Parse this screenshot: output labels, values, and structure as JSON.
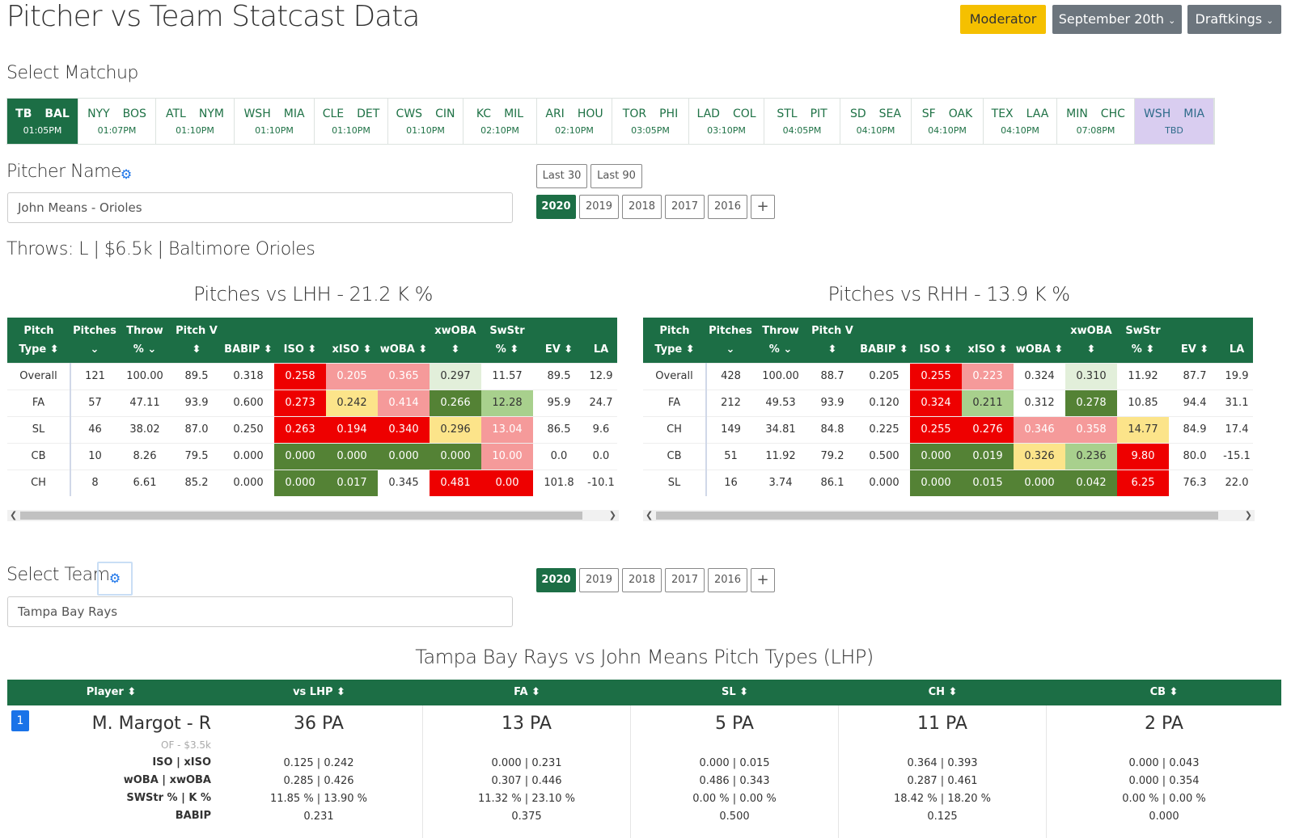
{
  "header": {
    "title": "Pitcher vs Team Statcast Data",
    "moderator": "Moderator",
    "date": "September 20th",
    "site": "Draftkings",
    "caret": "⌄"
  },
  "matchup_section": {
    "title": "Select Matchup"
  },
  "matchups": [
    {
      "a": "TB",
      "b": "BAL",
      "time": "01:05PM"
    },
    {
      "a": "NYY",
      "b": "BOS",
      "time": "01:07PM"
    },
    {
      "a": "ATL",
      "b": "NYM",
      "time": "01:10PM"
    },
    {
      "a": "WSH",
      "b": "MIA",
      "time": "01:10PM"
    },
    {
      "a": "CLE",
      "b": "DET",
      "time": "01:10PM"
    },
    {
      "a": "CWS",
      "b": "CIN",
      "time": "01:10PM"
    },
    {
      "a": "KC",
      "b": "MIL",
      "time": "02:10PM"
    },
    {
      "a": "ARI",
      "b": "HOU",
      "time": "02:10PM"
    },
    {
      "a": "TOR",
      "b": "PHI",
      "time": "03:05PM"
    },
    {
      "a": "LAD",
      "b": "COL",
      "time": "03:10PM"
    },
    {
      "a": "STL",
      "b": "PIT",
      "time": "04:05PM"
    },
    {
      "a": "SD",
      "b": "SEA",
      "time": "04:10PM"
    },
    {
      "a": "SF",
      "b": "OAK",
      "time": "04:10PM"
    },
    {
      "a": "TEX",
      "b": "LAA",
      "time": "04:10PM"
    },
    {
      "a": "MIN",
      "b": "CHC",
      "time": "07:08PM"
    },
    {
      "a": "WSH",
      "b": "MIA",
      "time": "TBD"
    }
  ],
  "pitcher": {
    "label": "Pitcher Name",
    "value": "John Means - Orioles",
    "info": "Throws: L | $6.5k | Baltimore Orioles",
    "range_buttons": [
      "Last 30",
      "Last 90"
    ],
    "years": [
      "2020",
      "2019",
      "2018",
      "2017",
      "2016"
    ],
    "plus": "+"
  },
  "lhh": {
    "title": "Pitches vs LHH - 21.2 K %",
    "rows": [
      [
        "Overall",
        "121",
        "100.00",
        "89.5",
        "0.318",
        "0.258",
        "0.205",
        "0.365",
        "0.297",
        "11.57",
        "89.5",
        "12.9"
      ],
      [
        "FA",
        "57",
        "47.11",
        "93.9",
        "0.600",
        "0.273",
        "0.242",
        "0.414",
        "0.266",
        "12.28",
        "95.9",
        "24.7"
      ],
      [
        "SL",
        "46",
        "38.02",
        "87.0",
        "0.250",
        "0.263",
        "0.194",
        "0.340",
        "0.296",
        "13.04",
        "86.5",
        "9.6"
      ],
      [
        "CB",
        "10",
        "8.26",
        "79.5",
        "0.000",
        "0.000",
        "0.000",
        "0.000",
        "0.000",
        "10.00",
        "0.0",
        "0.0"
      ],
      [
        "CH",
        "8",
        "6.61",
        "85.2",
        "0.000",
        "0.000",
        "0.017",
        "0.345",
        "0.481",
        "0.00",
        "101.8",
        "-10.1"
      ]
    ]
  },
  "rhh": {
    "title": "Pitches vs RHH - 13.9 K %",
    "rows": [
      [
        "Overall",
        "428",
        "100.00",
        "88.7",
        "0.205",
        "0.255",
        "0.223",
        "0.324",
        "0.310",
        "11.92",
        "87.7",
        "19.9"
      ],
      [
        "FA",
        "212",
        "49.53",
        "93.9",
        "0.120",
        "0.324",
        "0.211",
        "0.312",
        "0.278",
        "10.85",
        "94.4",
        "31.1"
      ],
      [
        "CH",
        "149",
        "34.81",
        "84.8",
        "0.225",
        "0.255",
        "0.276",
        "0.346",
        "0.358",
        "14.77",
        "84.9",
        "17.4"
      ],
      [
        "CB",
        "51",
        "11.92",
        "79.2",
        "0.500",
        "0.000",
        "0.019",
        "0.326",
        "0.236",
        "9.80",
        "80.0",
        "-15.1"
      ],
      [
        "SL",
        "16",
        "3.74",
        "86.1",
        "0.000",
        "0.000",
        "0.015",
        "0.000",
        "0.042",
        "6.25",
        "76.3",
        "22.0"
      ]
    ]
  },
  "pitch_table_headers": [
    [
      "Pitch",
      "Type ⬍"
    ],
    [
      "Pitches",
      "⌄"
    ],
    [
      "Throw",
      "% ⌄"
    ],
    [
      "Pitch V",
      "⬍"
    ],
    [
      "",
      "BABIP ⬍"
    ],
    [
      "",
      "ISO ⬍"
    ],
    [
      "",
      "xISO ⬍"
    ],
    [
      "",
      "wOBA ⬍"
    ],
    [
      "xwOBA",
      "⬍"
    ],
    [
      "SwStr",
      "% ⬍"
    ],
    [
      "",
      "EV ⬍"
    ],
    [
      "",
      "LA"
    ]
  ],
  "team": {
    "label": "Select Team",
    "value": "Tampa Bay Rays",
    "years": [
      "2020",
      "2019",
      "2018",
      "2017",
      "2016"
    ],
    "plus": "+"
  },
  "matchup_table": {
    "title": "Tampa Bay Rays vs John Means Pitch Types (LHP)",
    "headers": [
      "Player ⬍",
      "vs LHP ⬍",
      "FA ⬍",
      "SL ⬍",
      "CH ⬍",
      "CB ⬍"
    ],
    "row": {
      "rank": "1",
      "player": "M. Margot - R",
      "sub": "OF - $3.5k",
      "labels": [
        "ISO | xISO",
        "wOBA | xwOBA",
        "SWStr % | K %",
        "BABIP"
      ],
      "cols": [
        {
          "pa": "36 PA",
          "stats": [
            "0.125 | 0.242",
            "0.285 | 0.426",
            "11.85 % | 13.90 %",
            "0.231"
          ]
        },
        {
          "pa": "13 PA",
          "stats": [
            "0.000 | 0.231",
            "0.307 | 0.446",
            "11.32 % | 23.10 %",
            "0.375"
          ]
        },
        {
          "pa": "5 PA",
          "stats": [
            "0.000 | 0.015",
            "0.486 | 0.343",
            "0.00 % | 0.00 %",
            "0.500"
          ]
        },
        {
          "pa": "11 PA",
          "stats": [
            "0.364 | 0.393",
            "0.287 | 0.461",
            "18.42 % | 18.20 %",
            "0.125"
          ]
        },
        {
          "pa": "2 PA",
          "stats": [
            "0.000 | 0.043",
            "0.000 | 0.354",
            "0.00 % | 0.00 %",
            "0.000"
          ]
        }
      ]
    }
  },
  "colors": {
    "brand_green": "#1c6e45",
    "moderator": "#f5c000",
    "gray_button": "#6c757d"
  }
}
